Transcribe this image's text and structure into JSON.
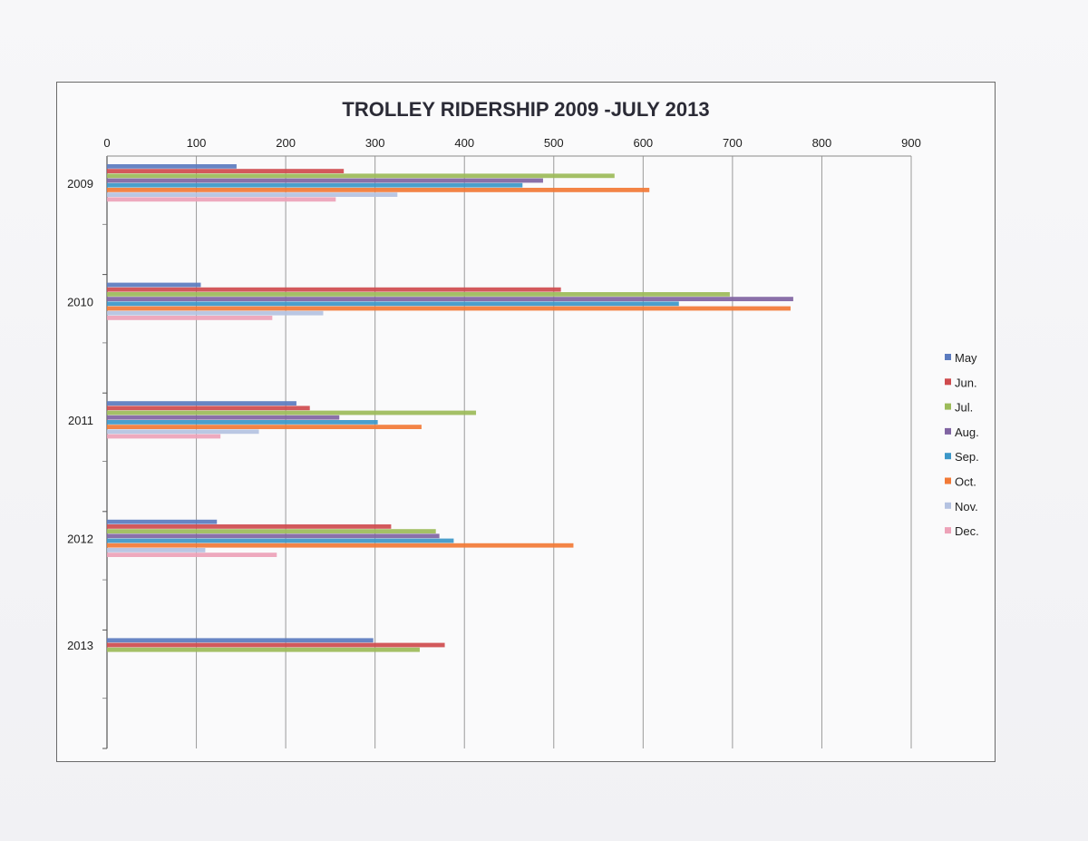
{
  "chart_data": {
    "type": "bar",
    "orientation": "horizontal",
    "title": "TROLLEY RIDERSHIP 2009 -JULY 2013",
    "xlabel": "",
    "ylabel": "",
    "xlim": [
      0,
      900
    ],
    "xticks": [
      "0",
      "100",
      "200",
      "300",
      "400",
      "500",
      "600",
      "700",
      "800",
      "900"
    ],
    "categories": [
      "2009",
      "2010",
      "2011",
      "2012",
      "2013"
    ],
    "legend_position": "right",
    "grid": true,
    "series": [
      {
        "name": "May",
        "color": "#5b7bbf",
        "values": [
          145,
          105,
          212,
          123,
          298
        ]
      },
      {
        "name": "Jun.",
        "color": "#cf4b4e",
        "values": [
          265,
          508,
          227,
          318,
          378
        ]
      },
      {
        "name": "Jul.",
        "color": "#9cbb59",
        "values": [
          568,
          697,
          413,
          368,
          350
        ]
      },
      {
        "name": "Aug.",
        "color": "#8064a2",
        "values": [
          488,
          768,
          260,
          372,
          null
        ]
      },
      {
        "name": "Sep.",
        "color": "#3c97c8",
        "values": [
          465,
          640,
          303,
          388,
          null
        ]
      },
      {
        "name": "Oct.",
        "color": "#f27a36",
        "values": [
          607,
          765,
          352,
          522,
          null
        ]
      },
      {
        "name": "Nov.",
        "color": "#b4c2e1",
        "values": [
          325,
          242,
          170,
          110,
          null
        ]
      },
      {
        "name": "Dec.",
        "color": "#eda2b8",
        "values": [
          256,
          185,
          127,
          190,
          null
        ]
      }
    ]
  }
}
